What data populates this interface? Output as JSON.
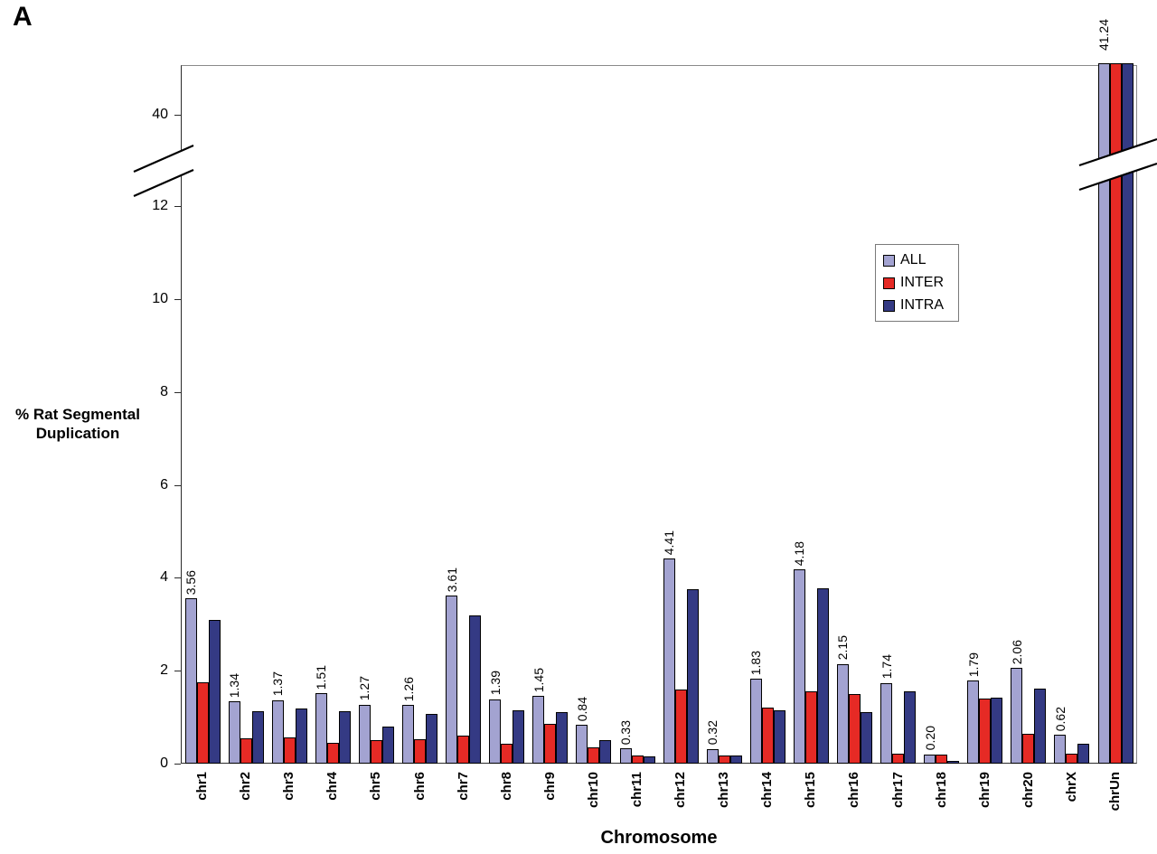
{
  "panel_label": "A",
  "chart_data": {
    "type": "bar",
    "title": "",
    "xlabel": "Chromosome",
    "ylabel": "% Rat Segmental\nDuplication",
    "grid": false,
    "legend_position": "upper-right",
    "axis_break": {
      "lower_max": 13,
      "upper_tick": 40
    },
    "yticks_lower": [
      0,
      2,
      4,
      6,
      8,
      10,
      12
    ],
    "ytick_upper_label": "40",
    "categories": [
      "chr1",
      "chr2",
      "chr3",
      "chr4",
      "chr5",
      "chr6",
      "chr7",
      "chr8",
      "chr9",
      "chr10",
      "chr11",
      "chr12",
      "chr13",
      "chr14",
      "chr15",
      "chr16",
      "chr17",
      "chr18",
      "chr19",
      "chr20",
      "chrX",
      "chrUn"
    ],
    "series": [
      {
        "name": "ALL",
        "color": "#a3a3d1",
        "values": [
          3.56,
          1.34,
          1.37,
          1.51,
          1.27,
          1.26,
          3.61,
          1.39,
          1.45,
          0.84,
          0.33,
          4.41,
          0.32,
          1.83,
          4.18,
          2.15,
          1.74,
          0.2,
          1.79,
          2.06,
          0.62,
          41.24
        ]
      },
      {
        "name": "INTER",
        "color": "#e62a25",
        "values": [
          1.75,
          0.55,
          0.57,
          0.45,
          0.5,
          0.52,
          0.6,
          0.42,
          0.85,
          0.35,
          0.18,
          1.6,
          0.18,
          1.2,
          1.55,
          1.5,
          0.22,
          0.2,
          1.4,
          0.65,
          0.22,
          41.0
        ]
      },
      {
        "name": "INTRA",
        "color": "#343a84",
        "values": [
          3.1,
          1.12,
          1.18,
          1.13,
          0.8,
          1.08,
          3.2,
          1.15,
          1.1,
          0.5,
          0.16,
          3.75,
          0.18,
          1.15,
          3.78,
          1.1,
          1.55,
          0.05,
          1.42,
          1.62,
          0.42,
          41.0
        ]
      }
    ],
    "value_labels": [
      "3.56",
      "1.34",
      "1.37",
      "1.51",
      "1.27",
      "1.26",
      "3.61",
      "1.39",
      "1.45",
      "0.84",
      "0.33",
      "4.41",
      "0.32",
      "1.83",
      "4.18",
      "2.15",
      "1.74",
      "0.20",
      "1.79",
      "2.06",
      "0.62",
      "41.24"
    ]
  }
}
